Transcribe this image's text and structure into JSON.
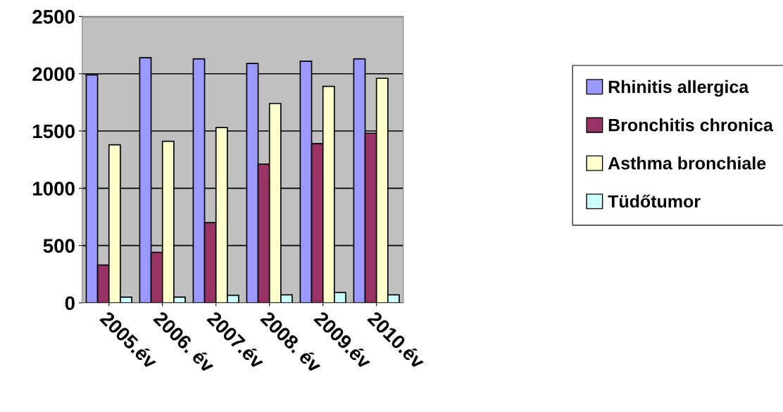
{
  "chart_data": {
    "type": "bar",
    "categories": [
      "2005.év",
      "2006. év",
      "2007.év",
      "2008. év",
      "2009.év",
      "2010.év"
    ],
    "series": [
      {
        "name": "Rhinitis allergica",
        "color": "#9999ff",
        "values": [
          1990,
          2140,
          2130,
          2090,
          2110,
          2130
        ]
      },
      {
        "name": "Bronchitis chronica",
        "color": "#993366",
        "values": [
          330,
          440,
          700,
          1210,
          1390,
          1480
        ]
      },
      {
        "name": "Asthma bronchiale",
        "color": "#ffffcc",
        "values": [
          1380,
          1410,
          1530,
          1740,
          1890,
          1960
        ]
      },
      {
        "name": "Tüdőtumor",
        "color": "#ccffff",
        "values": [
          50,
          50,
          65,
          70,
          90,
          70
        ]
      }
    ],
    "ylim": [
      0,
      2500
    ],
    "yticks": [
      0,
      500,
      1000,
      1500,
      2000,
      2500
    ],
    "grid": "y",
    "legend": "right"
  }
}
